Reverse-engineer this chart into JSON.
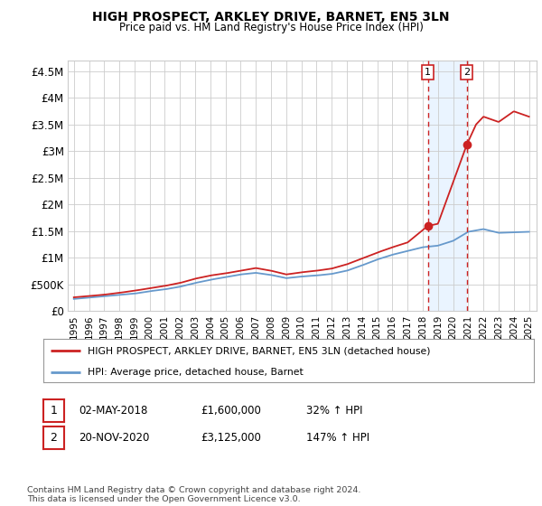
{
  "title": "HIGH PROSPECT, ARKLEY DRIVE, BARNET, EN5 3LN",
  "subtitle": "Price paid vs. HM Land Registry's House Price Index (HPI)",
  "ytick_values": [
    0,
    500000,
    1000000,
    1500000,
    2000000,
    2500000,
    3000000,
    3500000,
    4000000,
    4500000
  ],
  "ylim": [
    0,
    4700000
  ],
  "xlim_start": 1994.6,
  "xlim_end": 2025.5,
  "hpi_color": "#6699cc",
  "price_color": "#cc2222",
  "vline_color": "#cc2222",
  "background_color": "#ffffff",
  "grid_color": "#cccccc",
  "sale1_date": 2018.33,
  "sale1_price": 1600000,
  "sale2_date": 2020.9,
  "sale2_price": 3125000,
  "legend_house": "HIGH PROSPECT, ARKLEY DRIVE, BARNET, EN5 3LN (detached house)",
  "legend_hpi": "HPI: Average price, detached house, Barnet",
  "table_row1": [
    "1",
    "02-MAY-2018",
    "£1,600,000",
    "32% ↑ HPI"
  ],
  "table_row2": [
    "2",
    "20-NOV-2020",
    "£3,125,000",
    "147% ↑ HPI"
  ],
  "footer": "Contains HM Land Registry data © Crown copyright and database right 2024.\nThis data is licensed under the Open Government Licence v3.0.",
  "highlight_x1": 2018.33,
  "highlight_x2": 2020.9,
  "hpi_key_years": [
    1995,
    1996,
    1997,
    1998,
    1999,
    2000,
    2001,
    2002,
    2003,
    2004,
    2005,
    2006,
    2007,
    2008,
    2009,
    2010,
    2011,
    2012,
    2013,
    2014,
    2015,
    2016,
    2017,
    2018,
    2019,
    2020,
    2021,
    2022,
    2023,
    2024,
    2025
  ],
  "hpi_key_vals": [
    230000,
    255000,
    280000,
    305000,
    330000,
    375000,
    410000,
    460000,
    530000,
    590000,
    640000,
    690000,
    720000,
    680000,
    620000,
    650000,
    670000,
    700000,
    760000,
    860000,
    970000,
    1060000,
    1130000,
    1200000,
    1230000,
    1320000,
    1490000,
    1540000,
    1470000,
    1480000,
    1490000
  ],
  "price_key_years": [
    1995,
    1996,
    1997,
    1998,
    1999,
    2000,
    2001,
    2002,
    2003,
    2004,
    2005,
    2006,
    2007,
    2008,
    2009,
    2010,
    2011,
    2012,
    2013,
    2014,
    2015,
    2016,
    2017,
    2018.33,
    2019.0,
    2020.9,
    2021.5,
    2022,
    2023,
    2024,
    2025
  ],
  "price_key_vals": [
    260000,
    285000,
    310000,
    345000,
    385000,
    430000,
    475000,
    530000,
    610000,
    670000,
    710000,
    760000,
    810000,
    760000,
    690000,
    730000,
    760000,
    800000,
    880000,
    990000,
    1100000,
    1200000,
    1290000,
    1600000,
    1640000,
    3125000,
    3500000,
    3650000,
    3550000,
    3750000,
    3650000
  ]
}
